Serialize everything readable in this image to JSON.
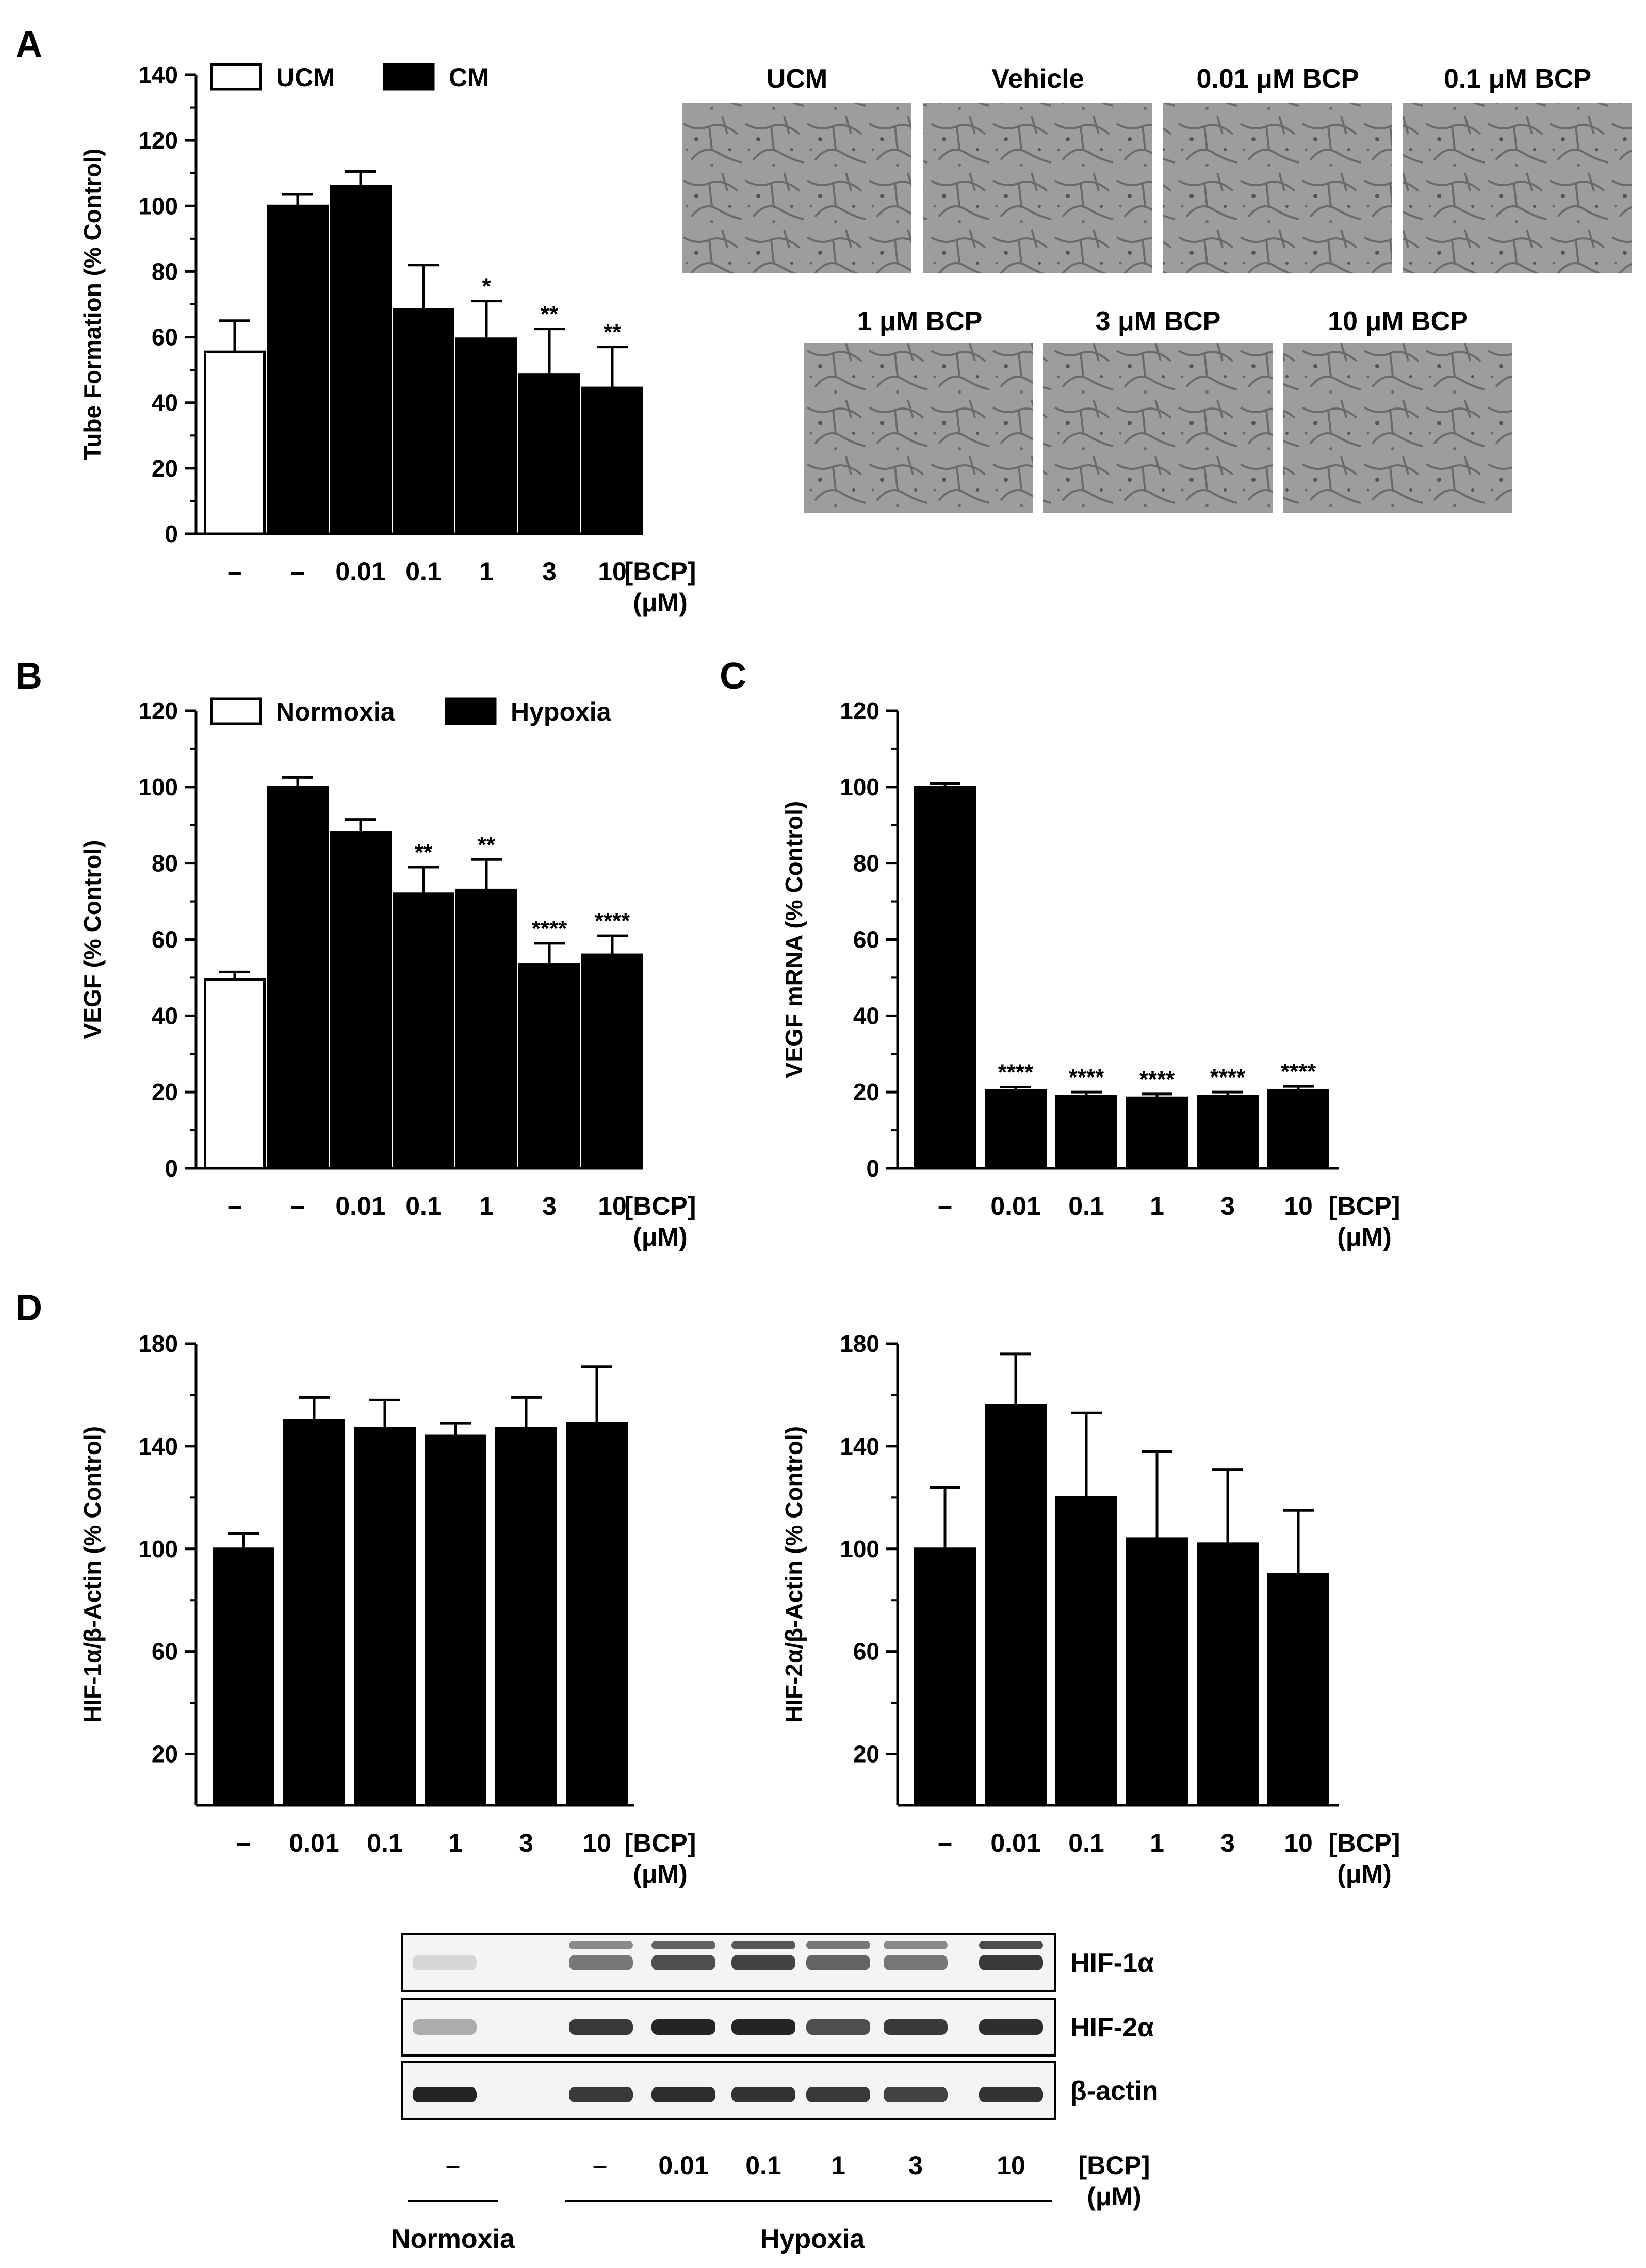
{
  "panels": {
    "A": "A",
    "B": "B",
    "C": "C",
    "D": "D"
  },
  "xaxis_unit": {
    "line1": "[BCP]",
    "line2": "(μM)"
  },
  "chart_data": [
    {
      "id": "A",
      "type": "bar",
      "ylabel": "Tube Formation (% Control)",
      "ylim": [
        0,
        140
      ],
      "yticks": [
        0,
        20,
        40,
        60,
        80,
        100,
        120,
        140
      ],
      "categories": [
        "–",
        "–",
        "0.01",
        "0.1",
        "1",
        "3",
        "10"
      ],
      "values": [
        55.5,
        100,
        106,
        68.5,
        59.5,
        48.5,
        44.5
      ],
      "errors": [
        9.5,
        3.5,
        4.5,
        13.5,
        11.5,
        14,
        12.5
      ],
      "fills": [
        "white",
        "black",
        "black",
        "black",
        "black",
        "black",
        "black"
      ],
      "significance": [
        "",
        "",
        "",
        "",
        "*",
        "**",
        "**"
      ],
      "legend": [
        {
          "label": "UCM",
          "fill": "white"
        },
        {
          "label": "CM",
          "fill": "black"
        }
      ]
    },
    {
      "id": "B",
      "type": "bar",
      "ylabel": "VEGF (% Control)",
      "ylim": [
        0,
        120
      ],
      "yticks": [
        0,
        20,
        40,
        60,
        80,
        100,
        120
      ],
      "categories": [
        "–",
        "–",
        "0.01",
        "0.1",
        "1",
        "3",
        "10"
      ],
      "values": [
        49.5,
        100,
        88,
        72,
        73,
        53.5,
        56
      ],
      "errors": [
        2,
        2.5,
        3.5,
        7,
        8,
        5.5,
        5
      ],
      "fills": [
        "white",
        "black",
        "black",
        "black",
        "black",
        "black",
        "black"
      ],
      "significance": [
        "",
        "",
        "",
        "**",
        "**",
        "****",
        "****"
      ],
      "legend": [
        {
          "label": "Normoxia",
          "fill": "white"
        },
        {
          "label": "Hypoxia",
          "fill": "black"
        }
      ]
    },
    {
      "id": "C",
      "type": "bar",
      "ylabel": "VEGF mRNA (% Control)",
      "ylim": [
        0,
        120
      ],
      "yticks": [
        0,
        20,
        40,
        60,
        80,
        100,
        120
      ],
      "categories": [
        "–",
        "0.01",
        "0.1",
        "1",
        "3",
        "10"
      ],
      "values": [
        100,
        20.5,
        19,
        18.5,
        19,
        20.5
      ],
      "errors": [
        1,
        0.8,
        1,
        1,
        1,
        1
      ],
      "fills": [
        "black",
        "black",
        "black",
        "black",
        "black",
        "black"
      ],
      "significance": [
        "",
        "****",
        "****",
        "****",
        "****",
        "****"
      ]
    },
    {
      "id": "D1",
      "type": "bar",
      "ylabel": "HIF-1α/β-Actin (% Control)",
      "ylim": [
        0,
        180
      ],
      "yticks": [
        20,
        60,
        100,
        140,
        180
      ],
      "categories": [
        "–",
        "0.01",
        "0.1",
        "1",
        "3",
        "10"
      ],
      "values": [
        100,
        150,
        147,
        144,
        147,
        149
      ],
      "errors": [
        6,
        9,
        11,
        5,
        12,
        22
      ],
      "fills": [
        "black",
        "black",
        "black",
        "black",
        "black",
        "black"
      ],
      "significance": [
        "",
        "",
        "",
        "",
        "",
        ""
      ]
    },
    {
      "id": "D2",
      "type": "bar",
      "ylabel": "HIF-2α/β-Actin (% Control)",
      "ylim": [
        0,
        180
      ],
      "yticks": [
        20,
        60,
        100,
        140,
        180
      ],
      "categories": [
        "–",
        "0.01",
        "0.1",
        "1",
        "3",
        "10"
      ],
      "values": [
        100,
        156,
        120,
        104,
        102,
        90
      ],
      "errors": [
        24,
        20,
        33,
        34,
        29,
        25
      ],
      "fills": [
        "black",
        "black",
        "black",
        "black",
        "black",
        "black"
      ],
      "significance": [
        "",
        "",
        "",
        "",
        "",
        ""
      ]
    }
  ],
  "micrographs": {
    "titles": [
      "UCM",
      "Vehicle",
      "0.01 μM BCP",
      "0.1 μM BCP",
      "1 μM BCP",
      "3 μM BCP",
      "10 μM BCP"
    ]
  },
  "blot": {
    "rows": [
      {
        "label": "HIF-1α",
        "intensity": [
          0.1,
          0,
          0.55,
          0.75,
          0.8,
          0.65,
          0.55,
          0.85
        ]
      },
      {
        "label": "HIF-2α",
        "intensity": [
          0.3,
          0,
          0.85,
          0.95,
          0.95,
          0.75,
          0.85,
          0.9
        ]
      },
      {
        "label": "β-actin",
        "intensity": [
          0.95,
          0,
          0.85,
          0.9,
          0.88,
          0.85,
          0.8,
          0.88
        ]
      }
    ],
    "lane_labels": [
      "–",
      "–",
      "0.01",
      "0.1",
      "1",
      "3",
      "10"
    ],
    "groups": {
      "normoxia": "Normoxia",
      "hypoxia": "Hypoxia"
    }
  },
  "colors": {
    "bar": "#000000",
    "micrograph_bg": "#9c9c9c",
    "blot_bg": "#f4f4f4"
  }
}
